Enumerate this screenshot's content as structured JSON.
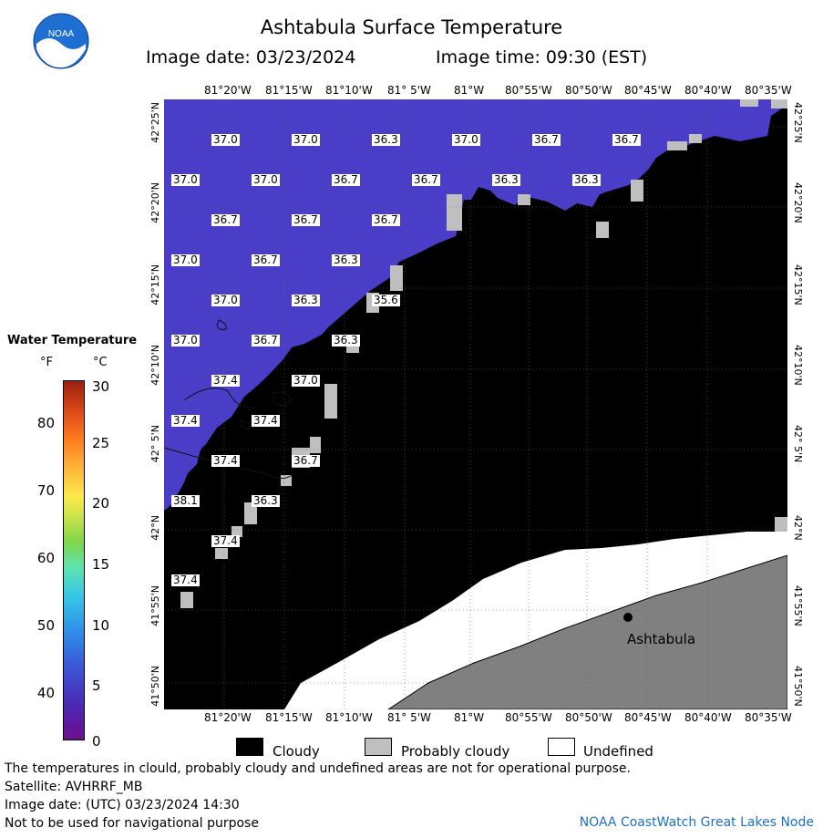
{
  "header": {
    "title": "Ashtabula Surface Temperature",
    "image_date": "Image date: 03/23/2024",
    "image_time": "Image time: 09:30 (EST)"
  },
  "logo": {
    "text": "NOAA",
    "icon": "noaa-logo-icon"
  },
  "legend": {
    "title": "Water Temperature",
    "unit_f": "°F",
    "unit_c": "°C",
    "f_ticks": [
      "80",
      "70",
      "60",
      "50",
      "40"
    ],
    "c_ticks": [
      "30",
      "25",
      "20",
      "15",
      "10",
      "5",
      "0"
    ]
  },
  "map": {
    "lon_labels": [
      "81°20'W",
      "81°15'W",
      "81°10'W",
      "81° 5'W",
      "81°W",
      "80°55'W",
      "80°50'W",
      "80°45'W",
      "80°40'W",
      "80°35'W"
    ],
    "lat_labels": [
      "42°25'N",
      "42°20'N",
      "42°15'N",
      "42°10'N",
      "42° 5'N",
      "42°N",
      "41°55'N",
      "41°50'N"
    ],
    "city": "Ashtabula",
    "temperatures": [
      {
        "id": "t01",
        "value": "37.0"
      },
      {
        "id": "t02",
        "value": "37.0"
      },
      {
        "id": "t03",
        "value": "36.3"
      },
      {
        "id": "t04",
        "value": "37.0"
      },
      {
        "id": "t05",
        "value": "36.7"
      },
      {
        "id": "t06",
        "value": "36.7"
      },
      {
        "id": "t07",
        "value": "37.0"
      },
      {
        "id": "t08",
        "value": "37.0"
      },
      {
        "id": "t09",
        "value": "36.7"
      },
      {
        "id": "t10",
        "value": "36.7"
      },
      {
        "id": "t11",
        "value": "36.3"
      },
      {
        "id": "t12",
        "value": "36.3"
      },
      {
        "id": "t13",
        "value": "36.7"
      },
      {
        "id": "t14",
        "value": "36.7"
      },
      {
        "id": "t15",
        "value": "36.7"
      },
      {
        "id": "t16",
        "value": "37.0"
      },
      {
        "id": "t17",
        "value": "36.7"
      },
      {
        "id": "t18",
        "value": "36.3"
      },
      {
        "id": "t19",
        "value": "37.0"
      },
      {
        "id": "t20",
        "value": "36.3"
      },
      {
        "id": "t21",
        "value": "35.6"
      },
      {
        "id": "t22",
        "value": "37.0"
      },
      {
        "id": "t23",
        "value": "36.7"
      },
      {
        "id": "t24",
        "value": "36.3"
      },
      {
        "id": "t25",
        "value": "37.4"
      },
      {
        "id": "t26",
        "value": "37.0"
      },
      {
        "id": "t27",
        "value": "37.4"
      },
      {
        "id": "t28",
        "value": "37.4"
      },
      {
        "id": "t29",
        "value": "37.4"
      },
      {
        "id": "t30",
        "value": "36.7"
      },
      {
        "id": "t31",
        "value": "38.1"
      },
      {
        "id": "t32",
        "value": "36.3"
      },
      {
        "id": "t33",
        "value": "37.4"
      },
      {
        "id": "t34",
        "value": "37.4"
      }
    ],
    "colors": {
      "water": "#4a3ec8",
      "cloudy": "#000000",
      "probably_cloudy": "#bfbfbf",
      "land": "#808080",
      "undefined": "#ffffff"
    }
  },
  "key": {
    "cloudy": "Cloudy",
    "probably_cloudy": "Probably cloudy",
    "undefined": "Undefined"
  },
  "footer": {
    "note": "The temperatures in clould, probably cloudy and undefined areas are not for operational purpose.",
    "satellite": "Satellite: AVHRRF_MB",
    "utc_date": "Image date: (UTC) 03/23/2024  14:30",
    "nav": "Not to be used for navigational purpose",
    "node": "NOAA CoastWatch Great Lakes Node"
  }
}
